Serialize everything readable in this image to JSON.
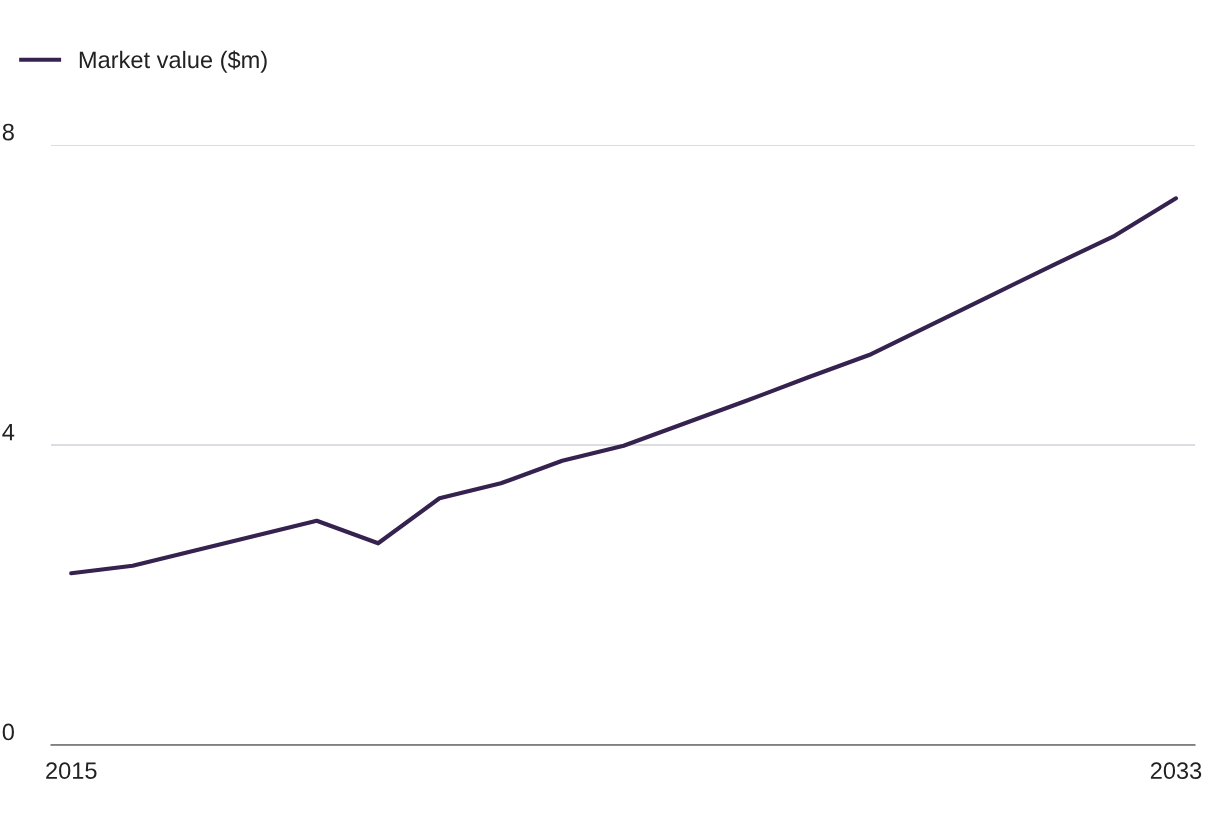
{
  "chart_data": {
    "type": "line",
    "x": [
      2015,
      2016,
      2017,
      2018,
      2019,
      2020,
      2021,
      2022,
      2023,
      2024,
      2025,
      2026,
      2027,
      2028,
      2029,
      2030,
      2031,
      2032,
      2033
    ],
    "series": [
      {
        "name": "Market value ($m)",
        "color": "#35224f",
        "values": [
          2.29,
          2.39,
          2.59,
          2.79,
          2.99,
          2.69,
          3.29,
          3.49,
          3.79,
          3.99,
          4.29,
          4.59,
          4.9,
          5.2,
          5.6,
          6.0,
          6.4,
          6.79,
          7.29
        ]
      }
    ],
    "xlim": [
      2014.67,
      2033.31
    ],
    "xticks": [
      2015,
      2033
    ],
    "ylim": [
      0,
      8
    ],
    "yticks": [
      0,
      4,
      8
    ],
    "grid": "y",
    "legend": "top left",
    "marker": "none",
    "line_style": "solid"
  }
}
